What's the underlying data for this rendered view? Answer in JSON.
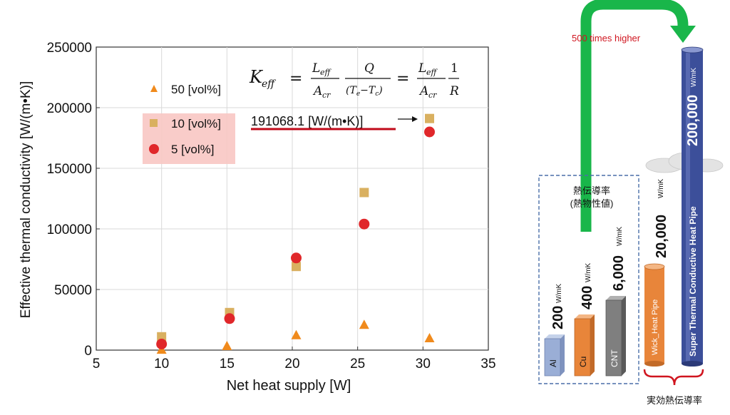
{
  "chart_data": {
    "type": "scatter",
    "xlabel": "Net heat supply [W]",
    "ylabel": "Effective thermal conductivity [W/(m•K)]",
    "xlim": [
      5,
      35
    ],
    "ylim": [
      0,
      250000
    ],
    "x_ticks": [
      "5",
      "10",
      "15",
      "20",
      "25",
      "30",
      "35"
    ],
    "y_ticks": [
      "0",
      "50000",
      "100000",
      "150000",
      "200000",
      "250000"
    ],
    "grid": true,
    "legend_position": "top-left",
    "series": [
      {
        "name": "50 [vol%]",
        "marker": "triangle",
        "color": "#f08a1c",
        "x": [
          10,
          15,
          20.3,
          25.5,
          30.5
        ],
        "y": [
          500,
          3500,
          12500,
          21000,
          10000
        ]
      },
      {
        "name": "10 [vol%]",
        "marker": "square",
        "color": "#d9b060",
        "x": [
          10,
          15.2,
          20.3,
          25.5,
          30.5
        ],
        "y": [
          11000,
          31000,
          69000,
          130000,
          191068
        ]
      },
      {
        "name": "5 [vol%]",
        "marker": "circle",
        "color": "#e0272a",
        "x": [
          10,
          15.2,
          20.3,
          25.5,
          30.5
        ],
        "y": [
          5000,
          26000,
          76000,
          104000,
          180000
        ]
      }
    ],
    "annotation": "191068.1 [W/(m•K)]",
    "equation": {
      "lhs": "K",
      "lhs_sub": "eff",
      "num1": "L",
      "num1_sub": "eff",
      "den1": "A",
      "den1_sub": "cr",
      "num2": "Q",
      "den2": "(T",
      "den2_sub1": "e",
      "den2_mid": "−T",
      "den2_sub2": "c",
      "den2_end": ")",
      "num4": "1",
      "den4": "R"
    }
  },
  "comparison": {
    "arrow_label": "500 times higher",
    "box_title_1": "熱伝導率",
    "box_title_2": "(熱物性値)",
    "bottom_label": "実効熱伝導率",
    "colors": {
      "arrow": "#19b64a",
      "heat_pipe": "#e8853a",
      "super_pipe": "#3c4f9a"
    },
    "bars": [
      {
        "name": "Al",
        "value": "200",
        "unit": "W/mK",
        "color": "#9aaed6"
      },
      {
        "name": "Cu",
        "value": "400",
        "unit": "W/mK",
        "color": "#e8853a"
      },
      {
        "name": "CNT",
        "value": "6,000",
        "unit": "W/mK",
        "color": "#7f7f7f"
      },
      {
        "name": "Wick_Heat Pipe",
        "value": "20,000",
        "unit": "W/mK",
        "color": "#e8853a"
      },
      {
        "name": "Super Thermal Conductive Heat Pipe",
        "value": "200,000",
        "unit": "W/mK",
        "color": "#3c4f9a"
      }
    ]
  }
}
